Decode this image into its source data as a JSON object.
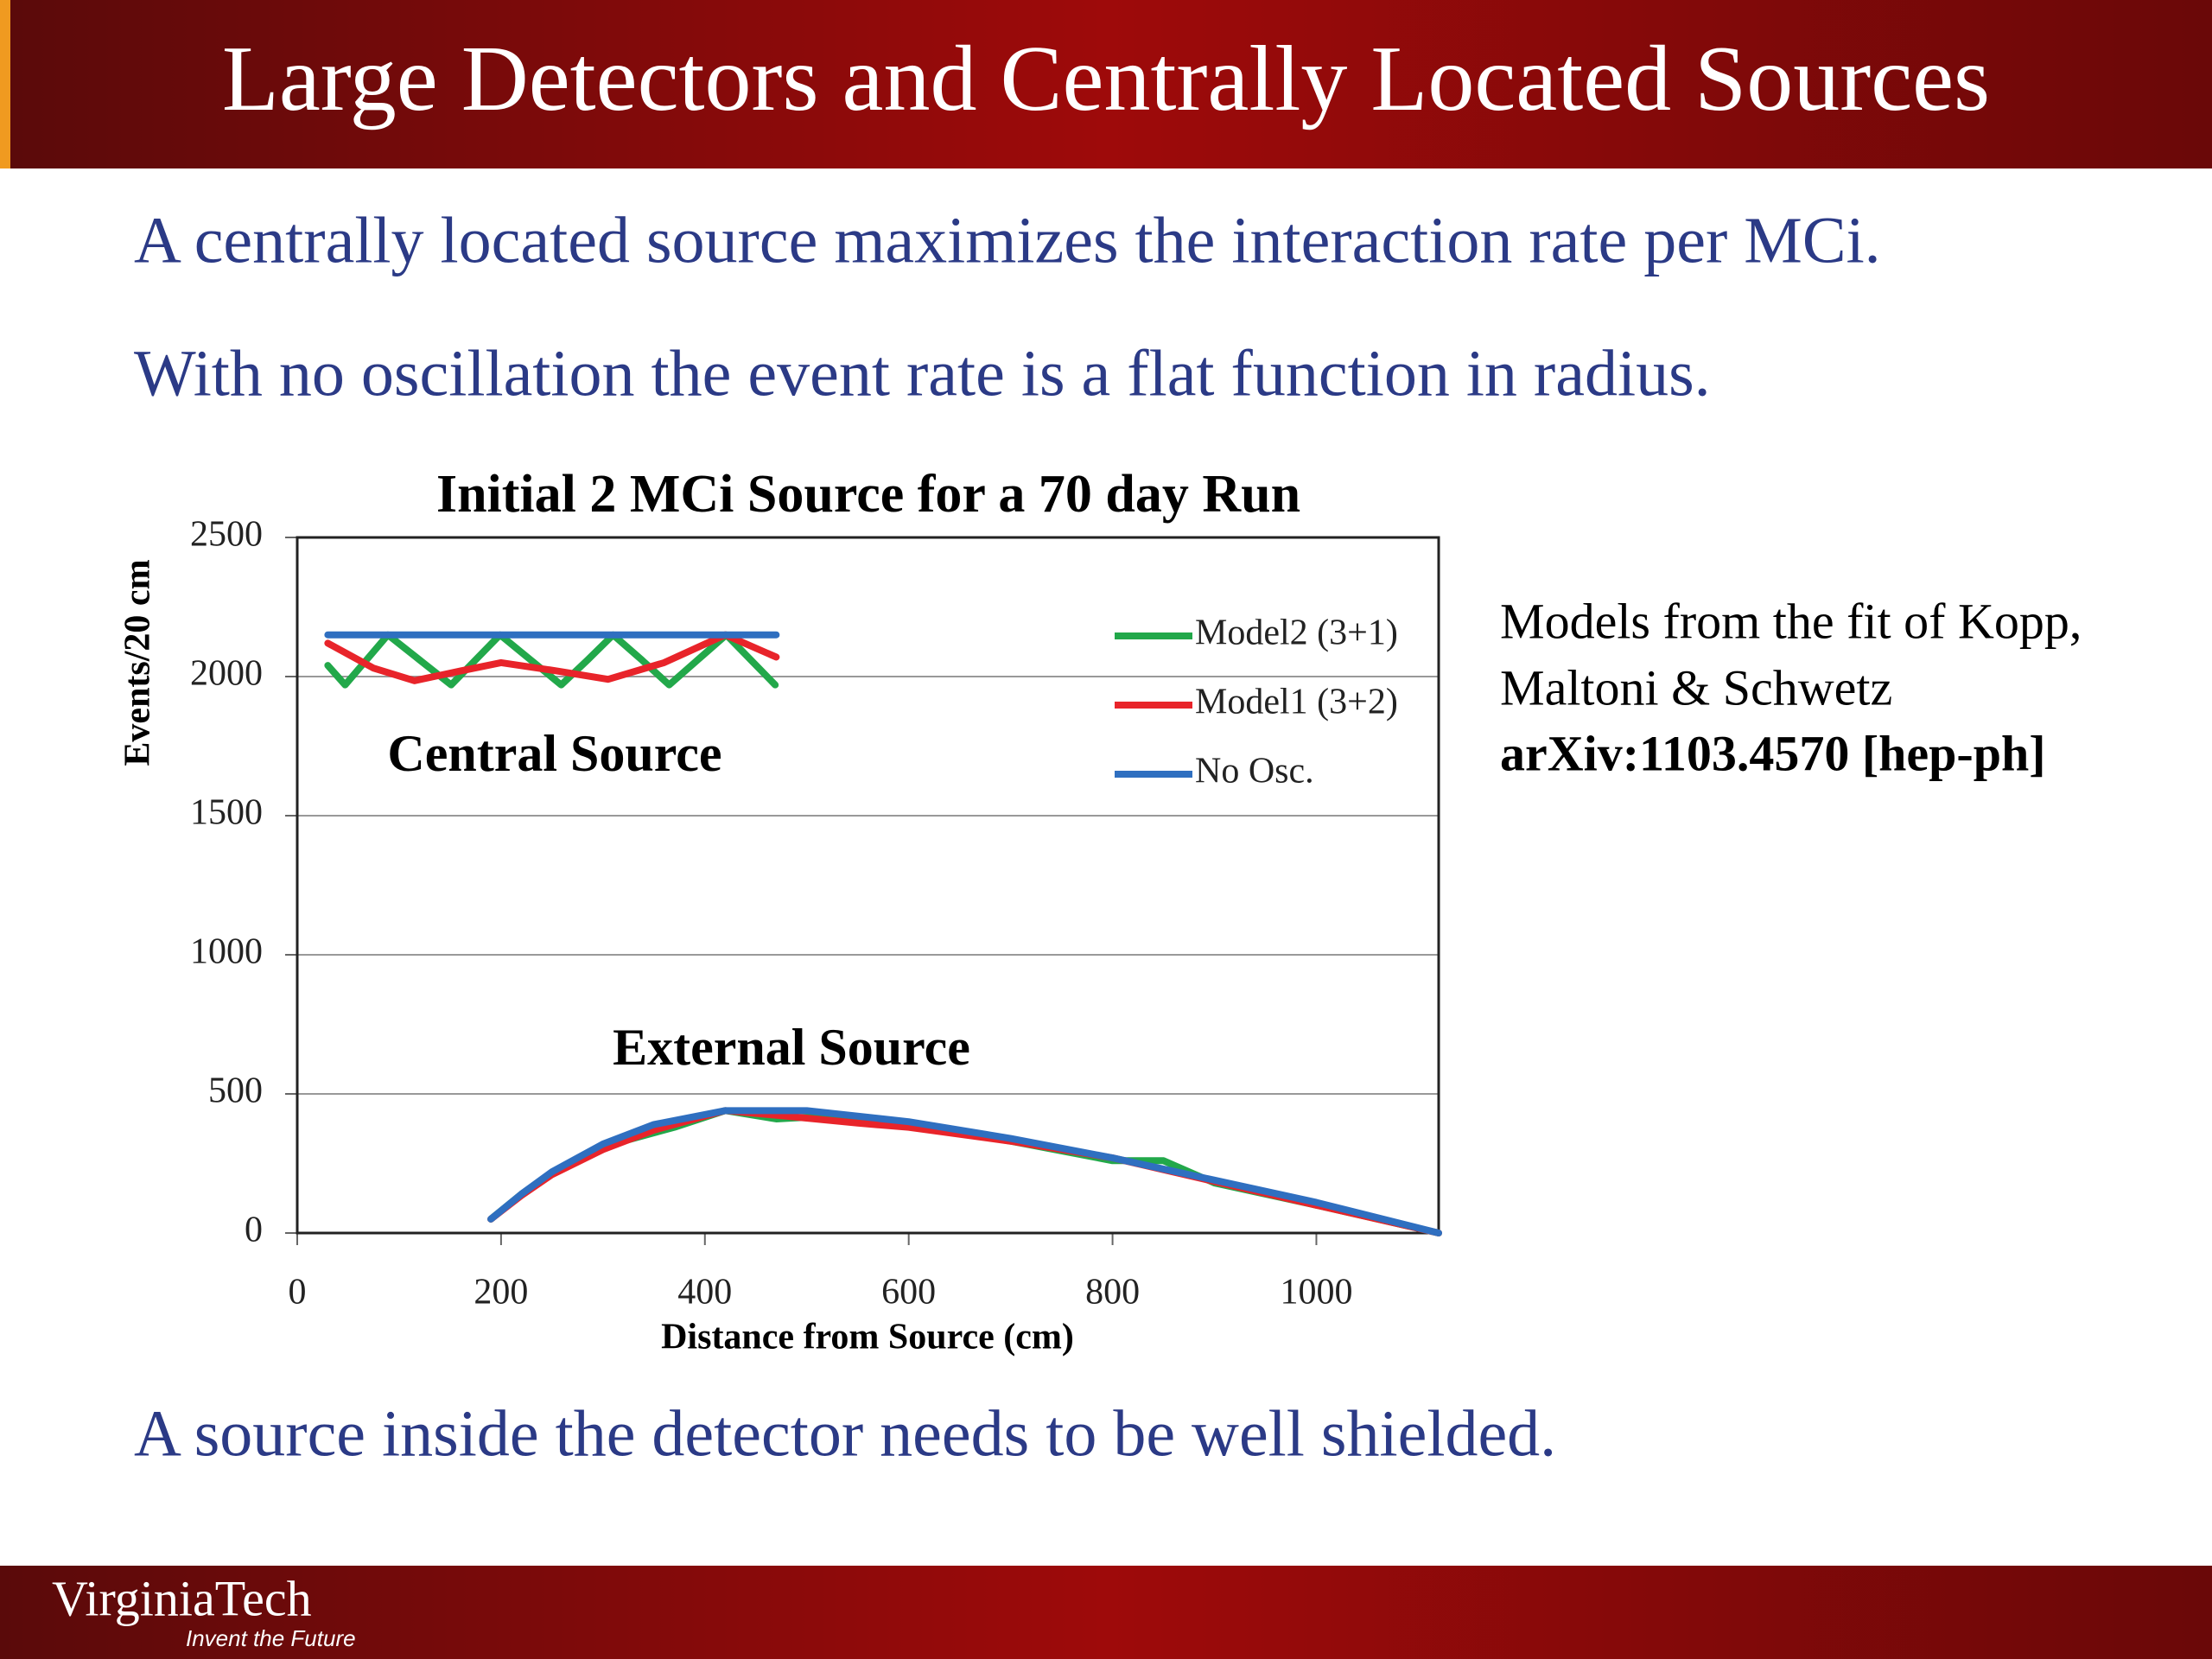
{
  "header": {
    "title": "Large Detectors and Centrally Located Sources"
  },
  "bullets": [
    "A centrally located source maximizes the interaction rate per MCi.",
    "With no oscillation the event rate is a flat function in radius.",
    "A source inside the detector needs to be well shielded."
  ],
  "notes": [
    "Models from the fit of Kopp,",
    "Maltoni & Schwetz",
    "arXiv:1103.4570 [hep-ph]"
  ],
  "footer": {
    "logo": "VirginiaTech",
    "tagline": "Invent the Future"
  },
  "chart_data": {
    "type": "line",
    "title": "Initial 2 MCi Source for a 70 day Run",
    "x_label": "Distance from Source (cm)",
    "y_label": "Events/20 cm",
    "annotations": [
      "Central Source",
      "External Source"
    ],
    "xlim": [
      0,
      1120
    ],
    "xticks": [
      0,
      200,
      400,
      600,
      800,
      1000
    ],
    "ylim": [
      0,
      2500
    ],
    "yticks": [
      0,
      500,
      1000,
      1500,
      2000,
      2500
    ],
    "grid": true,
    "legend": "right",
    "series": [
      {
        "name": "Model2 (3+1)",
        "color": "#22a84a",
        "x": [
          30,
          47,
          68,
          89,
          120,
          151,
          175,
          199,
          229,
          259,
          285,
          310,
          338,
          365,
          393,
          421,
          445,
          469,
          null,
          190,
          220,
          250,
          300,
          370,
          420,
          470,
          520,
          600,
          700,
          800,
          850,
          900,
          1000,
          1120
        ],
        "values": [
          2040,
          1970,
          2060,
          2150,
          2060,
          1970,
          2060,
          2150,
          2060,
          1970,
          2060,
          2150,
          2060,
          1970,
          2060,
          2150,
          2060,
          1970,
          null,
          50,
          140,
          215,
          310,
          380,
          440,
          410,
          420,
          390,
          330,
          260,
          260,
          180,
          100,
          0
        ]
      },
      {
        "name": "Model1 (3+2)",
        "color": "#e8242a",
        "x": [
          30,
          75,
          115,
          160,
          200,
          255,
          305,
          360,
          420,
          470,
          null,
          190,
          220,
          250,
          300,
          350,
          420,
          480,
          550,
          600,
          700,
          800,
          900,
          1000,
          1120
        ],
        "values": [
          2120,
          2030,
          1985,
          2020,
          2050,
          2020,
          1990,
          2050,
          2150,
          2070,
          null,
          50,
          135,
          210,
          300,
          370,
          440,
          420,
          395,
          380,
          330,
          270,
          185,
          100,
          0
        ]
      },
      {
        "name": "No Osc.",
        "color": "#2f6fc0",
        "x": [
          30,
          470,
          null,
          190,
          220,
          250,
          300,
          350,
          420,
          500,
          600,
          700,
          800,
          900,
          1000,
          1120
        ],
        "values": [
          2150,
          2150,
          null,
          50,
          140,
          220,
          320,
          390,
          440,
          440,
          400,
          340,
          270,
          190,
          110,
          0
        ]
      }
    ]
  }
}
